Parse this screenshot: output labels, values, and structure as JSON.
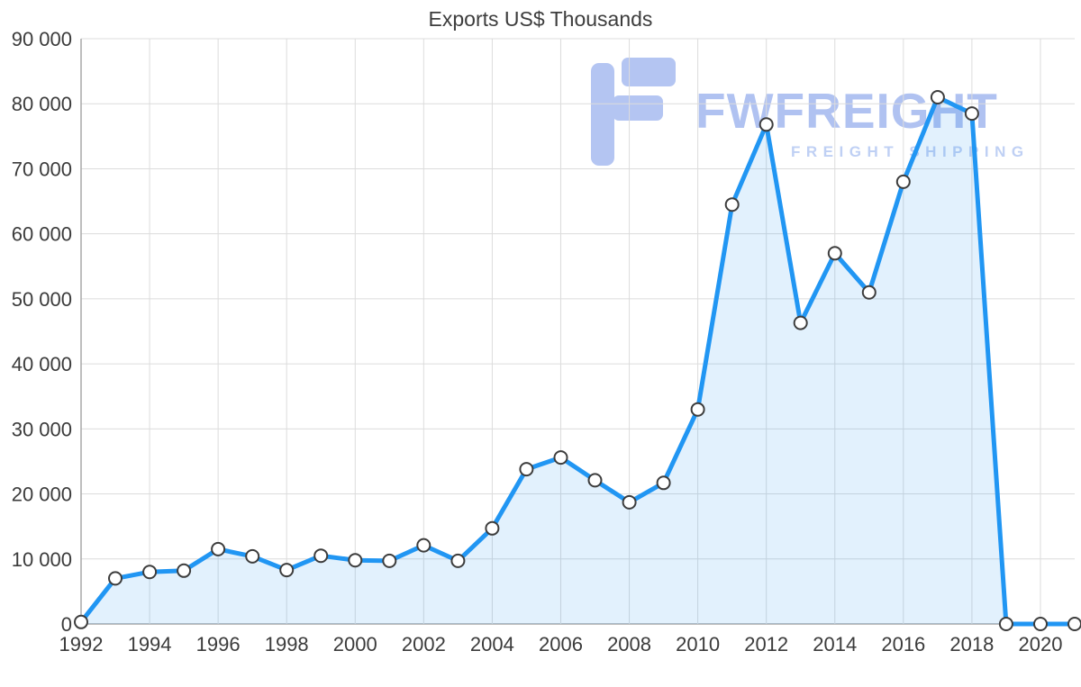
{
  "chart_data": {
    "type": "area",
    "title": "Exports US$ Thousands",
    "xlabel": "",
    "ylabel": "",
    "grid": true,
    "legend": "none",
    "series_name": "Exports US$ Thousands",
    "x": [
      1992,
      1993,
      1994,
      1995,
      1996,
      1997,
      1998,
      1999,
      2000,
      2001,
      2002,
      2003,
      2004,
      2005,
      2006,
      2007,
      2008,
      2009,
      2010,
      2011,
      2012,
      2013,
      2014,
      2015,
      2016,
      2017,
      2018,
      2019,
      2020,
      2021
    ],
    "values": [
      300,
      7000,
      8000,
      8200,
      11500,
      10400,
      8300,
      10500,
      9800,
      9700,
      12100,
      9700,
      14700,
      23800,
      25600,
      22100,
      18700,
      21700,
      33000,
      64500,
      76800,
      46300,
      57000,
      51000,
      68000,
      81000,
      78500,
      0,
      0,
      0
    ],
    "xticks": [
      "1992",
      "1994",
      "1996",
      "1998",
      "2000",
      "2002",
      "2004",
      "2006",
      "2008",
      "2010",
      "2012",
      "2014",
      "2016",
      "2018",
      "2020"
    ],
    "yticks": [
      0,
      10000,
      20000,
      30000,
      40000,
      50000,
      60000,
      70000,
      80000,
      90000
    ],
    "ytick_labels": [
      "0",
      "10 000",
      "20 000",
      "30 000",
      "40 000",
      "50 000",
      "60 000",
      "70 000",
      "80 000",
      "90 000"
    ],
    "ylim": [
      0,
      90000
    ],
    "xlim": [
      1992,
      2021
    ],
    "colors": {
      "line": "#2196f3",
      "fill": "#2196f3",
      "fill_opacity": 0.13,
      "marker_fill": "#ffffff",
      "marker_stroke": "#3d3d3d",
      "grid": "#dcdcdc",
      "axis": "#a8a8a8",
      "tick_text": "#3b3b3b"
    }
  },
  "watermark": {
    "brand": "FWFREIGHT",
    "tagline": "FREIGHT SHIPPING",
    "color": "#a7bbf0"
  }
}
